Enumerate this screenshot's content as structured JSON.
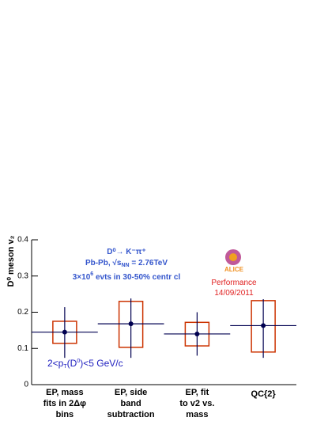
{
  "chart_data": {
    "type": "errorbox",
    "y_label": "D⁰ meson v₂",
    "categories": [
      [
        "EP, mass",
        "fits in 2Δφ",
        "bins"
      ],
      [
        "EP, side",
        "band",
        "subtraction"
      ],
      [
        "EP, fit",
        "to v2 vs.",
        "mass"
      ],
      [
        "QC{2}"
      ]
    ],
    "values": [
      0.145,
      0.168,
      0.14,
      0.163
    ],
    "stat_low": [
      0.074,
      0.074,
      0.08,
      0.074
    ],
    "stat_high": [
      0.214,
      0.238,
      0.2,
      0.236
    ],
    "sys_low": [
      0.114,
      0.103,
      0.107,
      0.09
    ],
    "sys_high": [
      0.175,
      0.23,
      0.172,
      0.232
    ],
    "color": "#000050",
    "box_color": "#cc3300",
    "ylim": [
      0,
      0.4
    ],
    "yticks": [
      0,
      0.1,
      0.2,
      0.3,
      0.4
    ],
    "annotations": [
      {
        "color": "#3355cc",
        "segments": [
          {
            "text": "D⁰→ K⁻π⁺"
          }
        ]
      },
      {
        "color": "#3355cc",
        "segments": [
          {
            "text": "Pb-Pb, √s"
          },
          {
            "text": "NN",
            "sub": true
          },
          {
            "text": " = 2.76TeV"
          }
        ]
      },
      {
        "color": "#3355cc",
        "segments": [
          {
            "text": "3×10"
          },
          {
            "text": "6",
            "sup": true
          },
          {
            "text": " evts in 30-50% centr cl"
          }
        ]
      },
      {
        "color": "#e02020",
        "segments": [
          {
            "text": "Performance"
          }
        ]
      },
      {
        "color": "#e02020",
        "segments": [
          {
            "text": "14/09/2011"
          }
        ]
      },
      {
        "color": "#2020c0",
        "segments": [
          {
            "text": "2<p"
          },
          {
            "text": "T",
            "sub": true
          },
          {
            "text": "(D"
          },
          {
            "text": "0",
            "sup": true
          },
          {
            "text": ")<5 GeV/c"
          }
        ]
      }
    ],
    "logo": "ALICE"
  }
}
